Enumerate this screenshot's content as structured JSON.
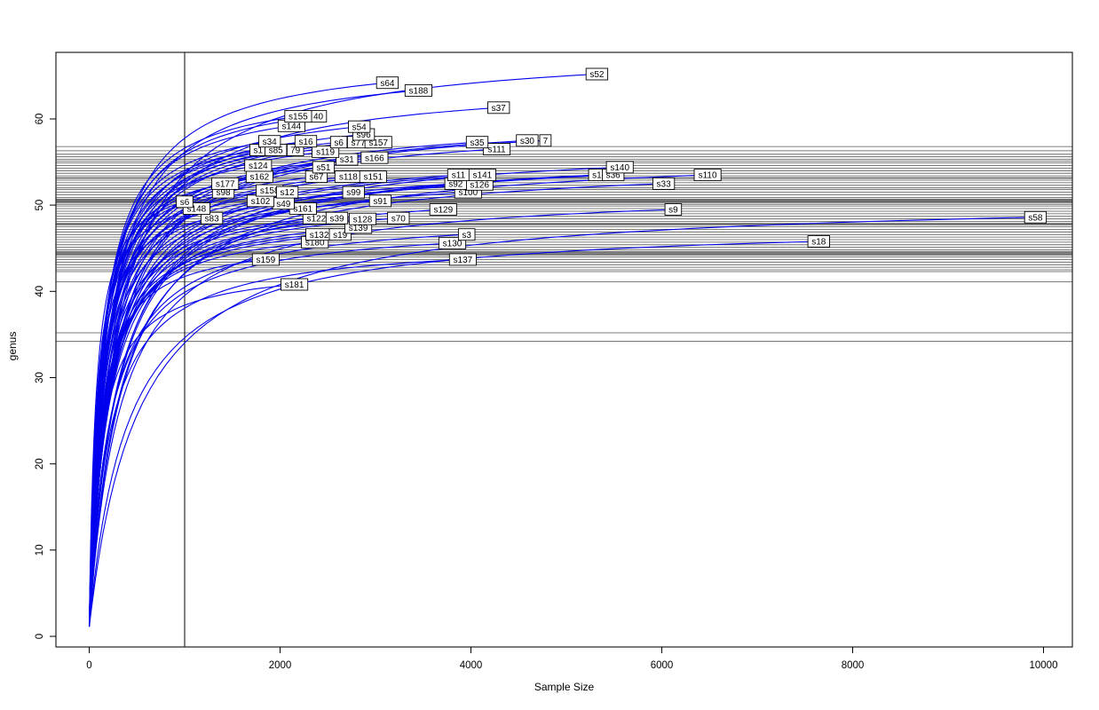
{
  "chart_data": {
    "type": "line",
    "title": "",
    "xlabel": "Sample Size",
    "ylabel": "genus",
    "x_ticks": [
      0,
      2000,
      4000,
      6000,
      8000,
      10000
    ],
    "y_ticks": [
      0,
      10,
      20,
      30,
      40,
      50,
      60
    ],
    "xlim": [
      -300,
      10300
    ],
    "ylim": [
      0,
      67
    ],
    "grid": false,
    "legend": "none",
    "curve_color": "#0000ee",
    "hline_color": "#3f3f3f",
    "rarefaction_sample_vline_x": 1000,
    "hline_values": [
      56.8,
      56.3,
      55.9,
      55.6,
      55.3,
      55.1,
      54.9,
      54.6,
      54.3,
      54.0,
      53.7,
      53.4,
      53.2,
      53.1,
      52.9,
      52.6,
      52.3,
      52.0,
      51.8,
      51.5,
      51.2,
      50.9,
      50.7,
      50.6,
      50.5,
      50.4,
      50.3,
      50.1,
      49.9,
      49.6,
      49.3,
      49.0,
      48.7,
      48.4,
      48.1,
      47.9,
      47.8,
      47.7,
      47.5,
      47.2,
      46.9,
      46.6,
      46.3,
      46.0,
      45.7,
      45.4,
      45.1,
      44.8,
      44.6,
      44.5,
      44.4,
      44.3,
      44.2,
      44.0,
      43.7,
      43.4,
      43.1,
      42.8,
      42.5,
      42.3,
      41.1,
      35.2,
      34.2
    ],
    "series": [
      {
        "label": "s181",
        "end_x": 2150,
        "end_y": 40.8
      },
      {
        "label": "s159",
        "end_x": 1850,
        "end_y": 43.7
      },
      {
        "label": "s137",
        "end_x": 3915,
        "end_y": 43.7
      },
      {
        "label": "s18",
        "end_x": 7645,
        "end_y": 45.8
      },
      {
        "label": "s180",
        "end_x": 2365,
        "end_y": 45.7
      },
      {
        "label": "s130",
        "end_x": 3805,
        "end_y": 45.6
      },
      {
        "label": "s3",
        "end_x": 3955,
        "end_y": 46.6
      },
      {
        "label": "s132",
        "end_x": 2410,
        "end_y": 46.6
      },
      {
        "label": "s19",
        "end_x": 2630,
        "end_y": 46.6
      },
      {
        "label": "s139",
        "end_x": 2820,
        "end_y": 47.4
      },
      {
        "label": "s58",
        "end_x": 9915,
        "end_y": 48.6
      },
      {
        "label": "s83",
        "end_x": 1285,
        "end_y": 48.5
      },
      {
        "label": "s122",
        "end_x": 2380,
        "end_y": 48.5
      },
      {
        "label": "s39",
        "end_x": 2595,
        "end_y": 48.5
      },
      {
        "label": "s128",
        "end_x": 2865,
        "end_y": 48.4
      },
      {
        "label": "s70",
        "end_x": 3240,
        "end_y": 48.5
      },
      {
        "label": "s148",
        "end_x": 1125,
        "end_y": 49.6
      },
      {
        "label": "s161",
        "end_x": 2240,
        "end_y": 49.6
      },
      {
        "label": "s129",
        "end_x": 3710,
        "end_y": 49.5
      },
      {
        "label": "s9",
        "end_x": 6120,
        "end_y": 49.5
      },
      {
        "label": "s49",
        "end_x": 2035,
        "end_y": 50.2
      },
      {
        "label": "s6",
        "end_x": 1000,
        "end_y": 50.4
      },
      {
        "label": "s102",
        "end_x": 1795,
        "end_y": 50.5
      },
      {
        "label": "s91",
        "end_x": 3050,
        "end_y": 50.5
      },
      {
        "label": "s98",
        "end_x": 1405,
        "end_y": 51.5
      },
      {
        "label": "s158",
        "end_x": 1890,
        "end_y": 51.7
      },
      {
        "label": "s12",
        "end_x": 2075,
        "end_y": 51.5
      },
      {
        "label": "s99",
        "end_x": 2770,
        "end_y": 51.5
      },
      {
        "label": "s100",
        "end_x": 3970,
        "end_y": 51.5
      },
      {
        "label": "s177",
        "end_x": 1425,
        "end_y": 52.5
      },
      {
        "label": "s126",
        "end_x": 4090,
        "end_y": 52.4
      },
      {
        "label": "s92",
        "end_x": 3840,
        "end_y": 52.5
      },
      {
        "label": "s33",
        "end_x": 6020,
        "end_y": 52.5
      },
      {
        "label": "s162",
        "end_x": 1785,
        "end_y": 53.3
      },
      {
        "label": "s67",
        "end_x": 2380,
        "end_y": 53.3
      },
      {
        "label": "s118",
        "end_x": 2715,
        "end_y": 53.3
      },
      {
        "label": "s151",
        "end_x": 2975,
        "end_y": 53.3
      },
      {
        "label": "s11",
        "end_x": 3870,
        "end_y": 53.5
      },
      {
        "label": "s141",
        "end_x": 4120,
        "end_y": 53.5
      },
      {
        "label": "s1",
        "end_x": 5320,
        "end_y": 53.5
      },
      {
        "label": "s36",
        "end_x": 5490,
        "end_y": 53.5
      },
      {
        "label": "s110",
        "end_x": 6480,
        "end_y": 53.5
      },
      {
        "label": "s124",
        "end_x": 1770,
        "end_y": 54.6
      },
      {
        "label": "s51",
        "end_x": 2455,
        "end_y": 54.4
      },
      {
        "label": "s140",
        "end_x": 5560,
        "end_y": 54.4
      },
      {
        "label": "s31",
        "end_x": 2700,
        "end_y": 55.3
      },
      {
        "label": "s166",
        "end_x": 2990,
        "end_y": 55.5
      },
      {
        "label": "s119",
        "end_x": 2475,
        "end_y": 56.2
      },
      {
        "label": "s111",
        "end_x": 4270,
        "end_y": 56.5
      },
      {
        "label": "s1",
        "end_x": 1770,
        "end_y": 56.4
      },
      {
        "label": "79",
        "end_x": 2160,
        "end_y": 56.4
      },
      {
        "label": "s85",
        "end_x": 1955,
        "end_y": 56.4
      },
      {
        "label": "s34",
        "end_x": 1890,
        "end_y": 57.4
      },
      {
        "label": "s16",
        "end_x": 2270,
        "end_y": 57.4
      },
      {
        "label": "s6",
        "end_x": 2615,
        "end_y": 57.3
      },
      {
        "label": "s77",
        "end_x": 2820,
        "end_y": 57.3
      },
      {
        "label": "s157",
        "end_x": 3030,
        "end_y": 57.3
      },
      {
        "label": "s35",
        "end_x": 4065,
        "end_y": 57.3
      },
      {
        "label": "7",
        "end_x": 4780,
        "end_y": 57.5
      },
      {
        "label": "s30",
        "end_x": 4590,
        "end_y": 57.5
      },
      {
        "label": "s96",
        "end_x": 2875,
        "end_y": 58.2
      },
      {
        "label": "s54",
        "end_x": 2830,
        "end_y": 59.1
      },
      {
        "label": "s144",
        "end_x": 2120,
        "end_y": 59.2
      },
      {
        "label": "40",
        "end_x": 2400,
        "end_y": 60.3
      },
      {
        "label": "s155",
        "end_x": 2190,
        "end_y": 60.3
      },
      {
        "label": "s37",
        "end_x": 4290,
        "end_y": 61.3
      },
      {
        "label": "s188",
        "end_x": 3450,
        "end_y": 63.3
      },
      {
        "label": "s64",
        "end_x": 3125,
        "end_y": 64.2
      },
      {
        "label": "s52",
        "end_x": 5320,
        "end_y": 65.2
      }
    ]
  }
}
